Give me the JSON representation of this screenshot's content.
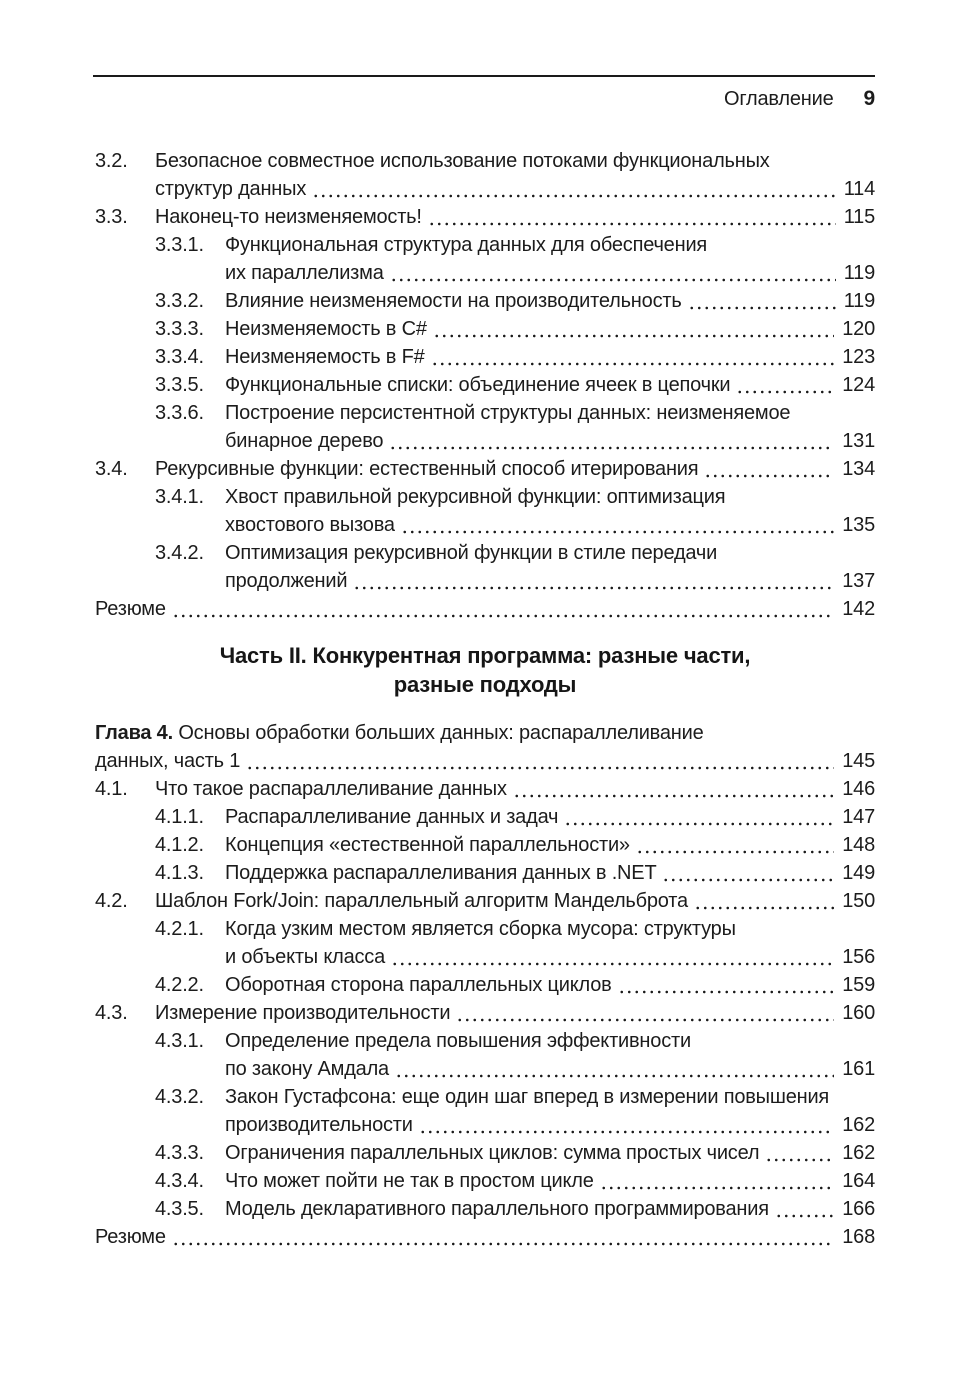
{
  "header": {
    "title": "Оглавление",
    "page_number": "9"
  },
  "toc": [
    {
      "type": "section",
      "level": 1,
      "num": "3.2.",
      "lines": [
        "Безопасное совместное использование потоками функциональных",
        "структур данных"
      ],
      "page": "114"
    },
    {
      "type": "section",
      "level": 1,
      "num": "3.3.",
      "lines": [
        "Наконец-то неизменяемость!"
      ],
      "page": "115"
    },
    {
      "type": "section",
      "level": 2,
      "num": "3.3.1.",
      "lines": [
        "Функциональная структура данных для обеспечения",
        "их параллелизма"
      ],
      "page": "119"
    },
    {
      "type": "section",
      "level": 2,
      "num": "3.3.2.",
      "lines": [
        "Влияние неизменяемости на производительность"
      ],
      "page": "119"
    },
    {
      "type": "section",
      "level": 2,
      "num": "3.3.3.",
      "lines": [
        "Неизменяемость в C#"
      ],
      "page": "120"
    },
    {
      "type": "section",
      "level": 2,
      "num": "3.3.4.",
      "lines": [
        "Неизменяемость в F#"
      ],
      "page": "123"
    },
    {
      "type": "section",
      "level": 2,
      "num": "3.3.5.",
      "lines": [
        "Функциональные списки: объединение ячеек в цепочки"
      ],
      "page": "124"
    },
    {
      "type": "section",
      "level": 2,
      "num": "3.3.6.",
      "lines": [
        "Построение персистентной структуры данных: неизменяемое",
        "бинарное дерево"
      ],
      "page": "131"
    },
    {
      "type": "section",
      "level": 1,
      "num": "3.4.",
      "lines": [
        "Рекурсивные функции: естественный способ итерирования"
      ],
      "page": "134"
    },
    {
      "type": "section",
      "level": 2,
      "num": "3.4.1.",
      "lines": [
        "Хвост правильной рекурсивной функции: оптимизация",
        "хвостового вызова"
      ],
      "page": "135"
    },
    {
      "type": "section",
      "level": 2,
      "num": "3.4.2.",
      "lines": [
        "Оптимизация рекурсивной функции в стиле передачи",
        "продолжений"
      ],
      "page": "137"
    },
    {
      "type": "summary",
      "lines": [
        "Резюме"
      ],
      "page": "142"
    },
    {
      "type": "part",
      "lines": [
        "Часть II. Конкурентная программа: разные части,",
        "разные подходы"
      ]
    },
    {
      "type": "chapter",
      "bold": "Глава 4.",
      "lines": [
        "Основы обработки больших данных: распараллеливание",
        "данных, часть 1"
      ],
      "page": "145"
    },
    {
      "type": "section",
      "level": 1,
      "num": "4.1.",
      "lines": [
        "Что такое распараллеливание данных"
      ],
      "page": "146"
    },
    {
      "type": "section",
      "level": 2,
      "num": "4.1.1.",
      "lines": [
        "Распараллеливание данных и задач"
      ],
      "page": "147"
    },
    {
      "type": "section",
      "level": 2,
      "num": "4.1.2.",
      "lines": [
        "Концепция «естественной параллельности»"
      ],
      "page": "148"
    },
    {
      "type": "section",
      "level": 2,
      "num": "4.1.3.",
      "lines": [
        "Поддержка распараллеливания данных в .NET"
      ],
      "page": "149"
    },
    {
      "type": "section",
      "level": 1,
      "num": "4.2.",
      "lines": [
        "Шаблон Fork/Join: параллельный алгоритм Мандельброта"
      ],
      "page": "150"
    },
    {
      "type": "section",
      "level": 2,
      "num": "4.2.1.",
      "lines": [
        "Когда узким местом является сборка мусора: структуры",
        "и объекты класса"
      ],
      "page": "156"
    },
    {
      "type": "section",
      "level": 2,
      "num": "4.2.2.",
      "lines": [
        "Оборотная сторона параллельных циклов"
      ],
      "page": "159"
    },
    {
      "type": "section",
      "level": 1,
      "num": "4.3.",
      "lines": [
        "Измерение производительности"
      ],
      "page": "160"
    },
    {
      "type": "section",
      "level": 2,
      "num": "4.3.1.",
      "lines": [
        "Определение предела повышения эффективности",
        "по закону Амдала"
      ],
      "page": "161"
    },
    {
      "type": "section",
      "level": 2,
      "num": "4.3.2.",
      "lines": [
        "Закон Густафсона: еще один шаг вперед в измерении повышения",
        "производительности"
      ],
      "page": "162"
    },
    {
      "type": "section",
      "level": 2,
      "num": "4.3.3.",
      "lines": [
        "Ограничения параллельных циклов: сумма простых чисел"
      ],
      "page": "162"
    },
    {
      "type": "section",
      "level": 2,
      "num": "4.3.4.",
      "lines": [
        "Что может пойти не так в простом цикле"
      ],
      "page": "164"
    },
    {
      "type": "section",
      "level": 2,
      "num": "4.3.5.",
      "lines": [
        "Модель декларативного параллельного программирования"
      ],
      "page": "166"
    },
    {
      "type": "summary",
      "lines": [
        "Резюме"
      ],
      "page": "168"
    }
  ]
}
